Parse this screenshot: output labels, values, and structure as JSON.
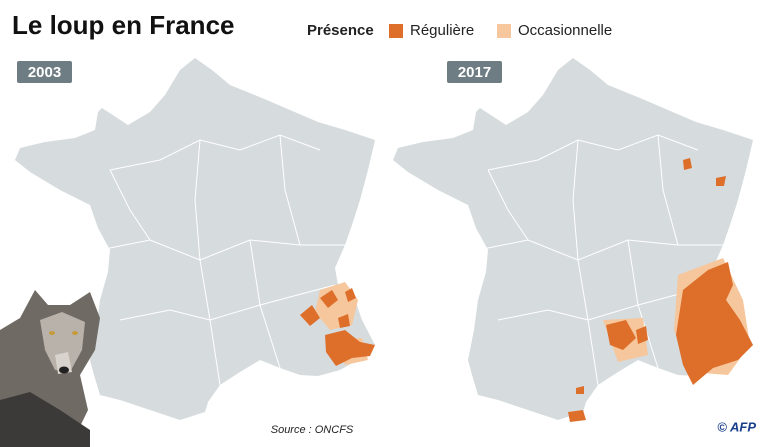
{
  "header": {
    "title": "Le loup en France"
  },
  "legend": {
    "title": "Présence",
    "items": [
      {
        "label": "Régulière",
        "color": "#dd6f2b"
      },
      {
        "label": "Occasionnelle",
        "color": "#f6c79c"
      }
    ]
  },
  "maps": [
    {
      "label": "2003"
    },
    {
      "label": "2017"
    }
  ],
  "footer": {
    "source": "Source : ONCFS",
    "credit": "© AFP"
  }
}
